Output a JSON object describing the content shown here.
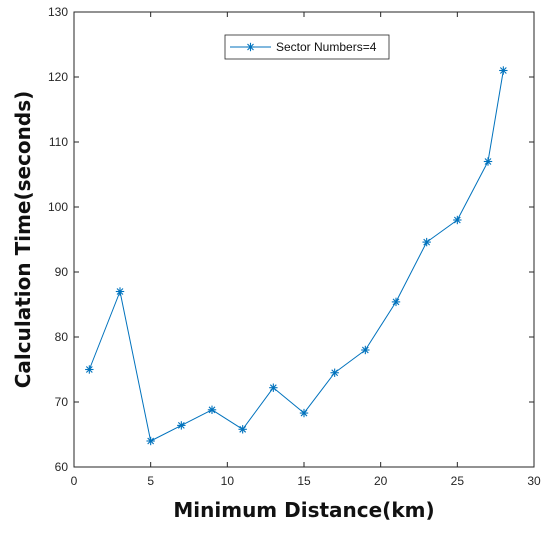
{
  "chart_data": {
    "type": "line",
    "title": "",
    "xlabel": "Minimum Distance(km)",
    "ylabel": "Calculation Time(seconds)",
    "xlim": [
      0,
      30
    ],
    "ylim": [
      60,
      130
    ],
    "xticks": [
      0,
      5,
      10,
      15,
      20,
      25,
      30
    ],
    "yticks": [
      60,
      70,
      80,
      90,
      100,
      110,
      120,
      130
    ],
    "grid": false,
    "legend_position": "top-center",
    "series": [
      {
        "name": "Sector Numbers=4",
        "color": "#0072BD",
        "marker": "asterisk",
        "x": [
          1,
          3,
          5,
          7,
          9,
          11,
          13,
          15,
          17,
          19,
          21,
          23,
          25,
          27,
          28
        ],
        "y": [
          75,
          87,
          64,
          66.4,
          68.8,
          65.8,
          72.2,
          68.3,
          74.5,
          78,
          85.4,
          94.6,
          98,
          107,
          121
        ]
      }
    ]
  }
}
